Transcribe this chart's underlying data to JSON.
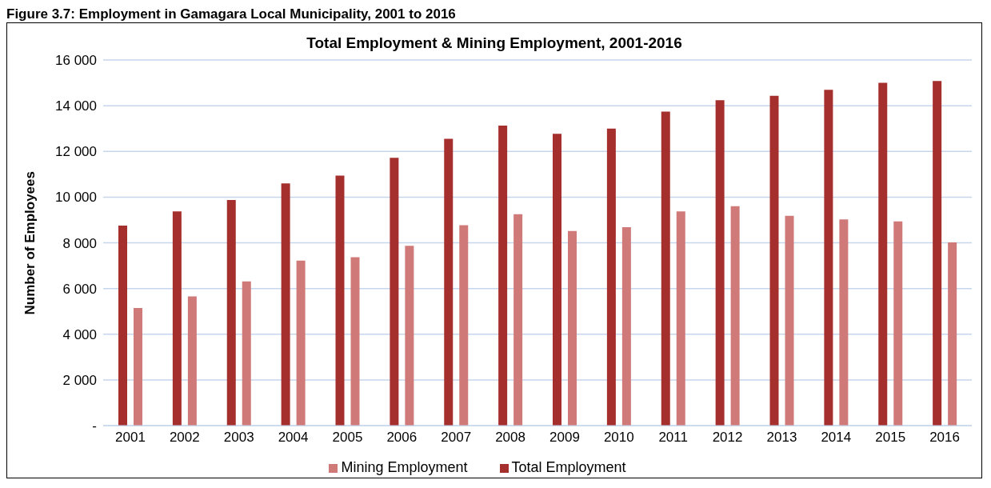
{
  "chart_data": {
    "type": "bar",
    "title": "Total Employment & Mining Employment, 2001-2016",
    "ylabel": "Number of Employees",
    "annotations": [
      "Figure 3.7: Employment in Gamagara Local Municipality, 2001 to 2016"
    ],
    "categories": [
      "2001",
      "2002",
      "2003",
      "2004",
      "2005",
      "2006",
      "2007",
      "2008",
      "2009",
      "2010",
      "2011",
      "2012",
      "2013",
      "2014",
      "2015",
      "2016"
    ],
    "series": [
      {
        "name": "Total Employment",
        "color": "#a52f2d",
        "values": [
          8750,
          9370,
          9870,
          10600,
          10940,
          11720,
          12550,
          13130,
          12770,
          13000,
          13740,
          14240,
          14430,
          14700,
          15000,
          15080
        ]
      },
      {
        "name": "Mining Employment",
        "color": "#cf7a78",
        "values": [
          5150,
          5650,
          6310,
          7220,
          7370,
          7870,
          8770,
          9250,
          8520,
          8680,
          9370,
          9600,
          9180,
          9020,
          8940,
          8020
        ]
      }
    ],
    "ylim": [
      0,
      16000
    ],
    "yticks": [
      {
        "value": 0,
        "label": "-"
      },
      {
        "value": 2000,
        "label": "2 000"
      },
      {
        "value": 4000,
        "label": "4 000"
      },
      {
        "value": 6000,
        "label": "6 000"
      },
      {
        "value": 8000,
        "label": "8 000"
      },
      {
        "value": 10000,
        "label": "10 000"
      },
      {
        "value": 12000,
        "label": "12 000"
      },
      {
        "value": 14000,
        "label": "14 000"
      },
      {
        "value": 16000,
        "label": "16 000"
      }
    ],
    "grid": "y",
    "legend": "bottom"
  }
}
